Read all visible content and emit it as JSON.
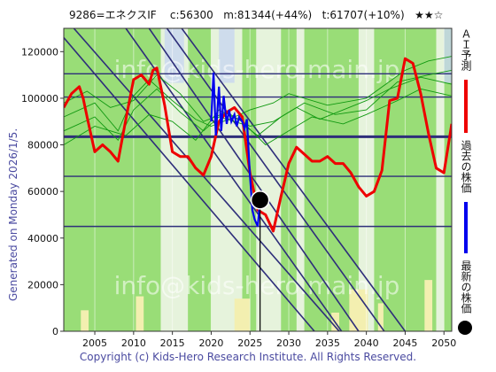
{
  "header": {
    "text": "9286=エネクスIF    c:56300   m:81344(+44%)   t:61707(+10%)   ★★☆"
  },
  "side_note": "Generated on Monday 2026/1/5.",
  "footer": "Copyright (c) Kids-Hero Research Institute. All Rights Reserved.",
  "watermark_top": "info@kids-hero.main.jp",
  "watermark_bottom": "info@kids-hero.main.jp",
  "legend": {
    "ai": {
      "label": "ＡＩ予測",
      "color": "#ee0000"
    },
    "past": {
      "label": "過去の株価",
      "color": "#0000ee"
    },
    "latest": {
      "label": "最新の株価",
      "color": "#000000"
    }
  },
  "colors": {
    "green_band": "#99dd77",
    "light_band": "#e6f3dc",
    "yellow_band": "#f3efb0",
    "blue_band": "#c8d6f0",
    "guide": "#2e2e7a",
    "thin_green": "#119911"
  },
  "chart_data": {
    "type": "line",
    "xlim": [
      2001,
      2051
    ],
    "ylim": [
      0,
      130000
    ],
    "x_ticks": [
      2005,
      2010,
      2015,
      2020,
      2025,
      2030,
      2035,
      2040,
      2045,
      2050
    ],
    "y_ticks": [
      0,
      20000,
      40000,
      60000,
      80000,
      100000,
      120000
    ],
    "x_tick_labels": [
      "2005",
      "2010",
      "2015",
      "2020",
      "2025",
      "2030",
      "2035",
      "2040",
      "2045",
      "2050"
    ],
    "y_tick_labels": [
      "0",
      "20000",
      "40000",
      "60000",
      "80000",
      "100000",
      "120000"
    ],
    "horizontal_levels": [
      110500,
      100500,
      83500,
      66500,
      45000
    ],
    "highlight_level": 83500,
    "latest": {
      "x": 2026.3,
      "y": 56300
    },
    "ai_prediction": {
      "x": [
        2001,
        2002,
        2003,
        2003.5,
        2004,
        2005,
        2006,
        2007,
        2008,
        2009,
        2010,
        2011,
        2012,
        2012.5,
        2013,
        2014,
        2015,
        2016,
        2017,
        2018,
        2019,
        2020,
        2021,
        2022,
        2023,
        2024,
        2025,
        2026,
        2027,
        2028,
        2029,
        2029.5,
        2030,
        2031,
        2032,
        2033,
        2034,
        2035,
        2036,
        2037,
        2038,
        2039,
        2040,
        2041,
        2042,
        2043,
        2044,
        2045,
        2046,
        2047,
        2048,
        2049,
        2050,
        2051
      ],
      "y": [
        96000,
        102000,
        105000,
        100000,
        92000,
        77000,
        80000,
        77000,
        73000,
        91000,
        108000,
        110000,
        106000,
        112000,
        113000,
        97000,
        77000,
        75000,
        75000,
        70000,
        67000,
        75000,
        90000,
        94000,
        96000,
        92000,
        68000,
        52000,
        50000,
        43000,
        58000,
        65000,
        72000,
        79000,
        76000,
        73000,
        73000,
        75000,
        72000,
        72000,
        68000,
        62000,
        58000,
        60000,
        69000,
        99000,
        100000,
        117000,
        115000,
        102000,
        85000,
        70000,
        68000,
        89000
      ]
    },
    "past_price": {
      "x": [
        2020,
        2020.3,
        2020.6,
        2021,
        2021.3,
        2021.6,
        2022,
        2022.3,
        2022.6,
        2023,
        2023.3,
        2023.6,
        2024,
        2024.3,
        2024.6,
        2025,
        2025.3,
        2025.6,
        2026,
        2026.3
      ],
      "y": [
        90000,
        111000,
        84000,
        105000,
        86000,
        101000,
        89000,
        95000,
        90000,
        93000,
        88000,
        92000,
        90000,
        87000,
        91000,
        67000,
        52000,
        48000,
        45000,
        56300
      ]
    },
    "thin_series": [
      {
        "x": [
          2001,
          2005,
          2008,
          2010,
          2012,
          2015,
          2018,
          2020,
          2023,
          2025,
          2028,
          2030,
          2035,
          2040,
          2045,
          2048,
          2051
        ],
        "y": [
          92000,
          98000,
          86000,
          101000,
          108000,
          99000,
          91000,
          88000,
          92000,
          95000,
          98000,
          102000,
          97000,
          100000,
          112000,
          116000,
          118000
        ]
      },
      {
        "x": [
          2001,
          2005,
          2008,
          2010,
          2013,
          2016,
          2019,
          2021,
          2024,
          2026,
          2029,
          2032,
          2036,
          2040,
          2044,
          2048,
          2051
        ],
        "y": [
          86000,
          92000,
          82000,
          95000,
          104000,
          94000,
          86000,
          92000,
          89000,
          84000,
          92000,
          98000,
          93000,
          95000,
          107000,
          110000,
          112000
        ]
      },
      {
        "x": [
          2001,
          2004,
          2007,
          2010,
          2013,
          2016,
          2019,
          2022,
          2025,
          2028,
          2031,
          2034,
          2037,
          2040,
          2043,
          2047,
          2051
        ],
        "y": [
          98000,
          103000,
          96000,
          99000,
          110000,
          102000,
          90000,
          94000,
          88000,
          90000,
          96000,
          91000,
          95000,
          99000,
          104000,
          109000,
          106000
        ]
      },
      {
        "x": [
          2001,
          2005,
          2009,
          2012,
          2015,
          2018,
          2021,
          2024,
          2027,
          2030,
          2033,
          2037,
          2040,
          2044,
          2047,
          2051
        ],
        "y": [
          80000,
          88000,
          84000,
          93000,
          90000,
          82000,
          95000,
          90000,
          80000,
          86000,
          92000,
          89000,
          93000,
          99000,
          104000,
          101000
        ]
      }
    ],
    "diagonals": [
      {
        "x": [
          2002.3,
          2036.5
        ],
        "y": [
          130000,
          0
        ]
      },
      {
        "x": [
          2012.0,
          2039.0
        ],
        "y": [
          130000,
          0
        ]
      },
      {
        "x": [
          2014.3,
          2042.3
        ],
        "y": [
          130000,
          0
        ]
      },
      {
        "x": [
          2016.2,
          2045.0
        ],
        "y": [
          130000,
          0
        ]
      },
      {
        "x": [
          2001.0,
          2033.3
        ],
        "y": [
          126000,
          0
        ]
      },
      {
        "x": [
          2009.0,
          2036.8
        ],
        "y": [
          130000,
          0
        ]
      }
    ],
    "green_bands": [
      [
        2001,
        2013.5
      ],
      [
        2017,
        2020
      ],
      [
        2024,
        2025.8
      ],
      [
        2029,
        2031
      ],
      [
        2032,
        2039
      ],
      [
        2041,
        2049
      ],
      [
        2050,
        2051
      ]
    ],
    "light_bands": [
      [
        2013.5,
        2017
      ],
      [
        2020,
        2024
      ],
      [
        2025.8,
        2029
      ],
      [
        2031,
        2032
      ],
      [
        2039,
        2041
      ],
      [
        2049,
        2050
      ]
    ],
    "blue_bands": [
      [
        2014,
        2016.5
      ],
      [
        2021,
        2023
      ],
      [
        2050,
        2051
      ]
    ],
    "yellow_patches": [
      {
        "x": [
          2003.2,
          2004.2
        ],
        "y": [
          0,
          9000
        ]
      },
      {
        "x": [
          2010.3,
          2011.3
        ],
        "y": [
          0,
          15000
        ]
      },
      {
        "x": [
          2023.0,
          2025.0
        ],
        "y": [
          0,
          14000
        ]
      },
      {
        "x": [
          2035.5,
          2036.5
        ],
        "y": [
          0,
          8000
        ]
      },
      {
        "x": [
          2037.8,
          2040.2
        ],
        "y": [
          0,
          18000
        ]
      },
      {
        "x": [
          2041.5,
          2042.2
        ],
        "y": [
          0,
          12000
        ]
      },
      {
        "x": [
          2047.5,
          2048.5
        ],
        "y": [
          0,
          22000
        ]
      }
    ]
  }
}
